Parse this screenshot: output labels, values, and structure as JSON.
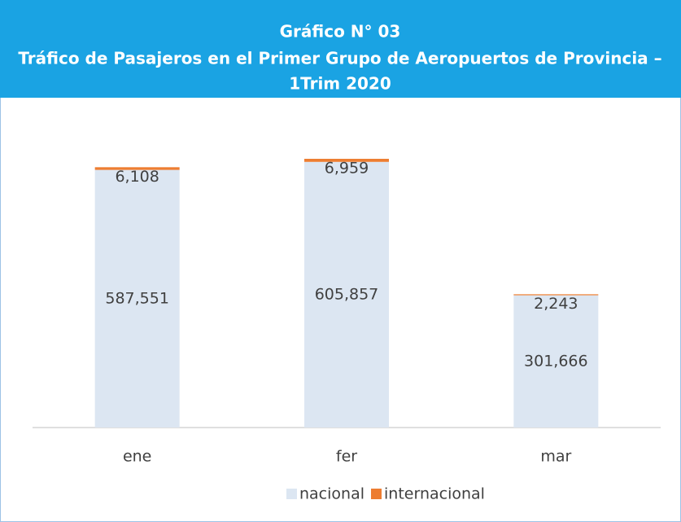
{
  "chart_data": {
    "type": "stacked_bar",
    "title": [
      "Gráfico N° 03",
      "Tráfico de Pasajeros en el Primer Grupo de Aeropuertos de Provincia –",
      "1Trim 2020"
    ],
    "categories": [
      "ene",
      "fer",
      "mar"
    ],
    "series": [
      {
        "name": "nacional",
        "color": "#dce6f2",
        "values": [
          587551,
          605857,
          301666
        ],
        "value_labels": [
          "587,551",
          "605,857",
          "301,666"
        ]
      },
      {
        "name": "internacional",
        "color": "#ed7d31",
        "values": [
          6108,
          6959,
          2243
        ],
        "value_labels": [
          "6,108",
          "6,959",
          "2,243"
        ]
      }
    ],
    "ylim": [
      0,
      715000
    ]
  }
}
